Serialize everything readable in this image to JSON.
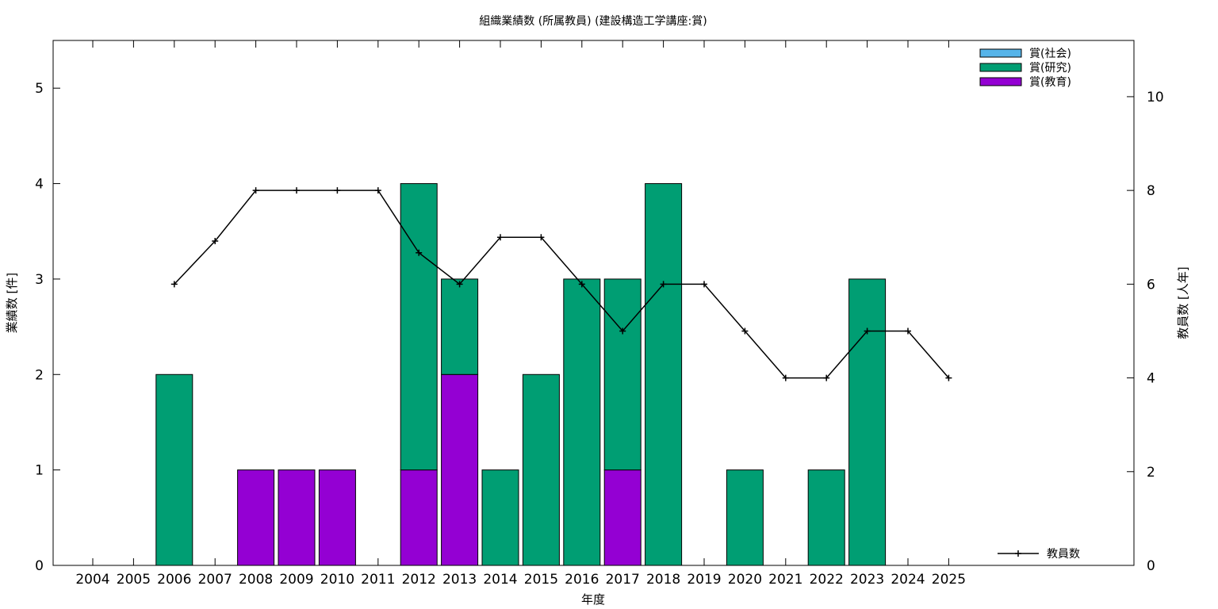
{
  "chart_data": {
    "type": "bar",
    "stacked": true,
    "title": "組織業績数 (所属教員) (建設構造工学講座:賞)",
    "xlabel": "年度",
    "ylabel": "業績数 [件]",
    "y2label": "教員数 [人年]",
    "ylim": [
      0,
      5.5
    ],
    "y2lim": [
      0,
      11.2
    ],
    "yticks": [
      0,
      1,
      2,
      3,
      4,
      5
    ],
    "y2ticks": [
      0,
      2,
      4,
      6,
      8,
      10
    ],
    "legend_position": "top-right",
    "categories": [
      "2004",
      "2005",
      "2006",
      "2007",
      "2008",
      "2009",
      "2010",
      "2011",
      "2012",
      "2013",
      "2014",
      "2015",
      "2016",
      "2017",
      "2018",
      "2019",
      "2020",
      "2021",
      "2022",
      "2023",
      "2024",
      "2025"
    ],
    "series": [
      {
        "name": "賞(教育)",
        "color": "#9400d3",
        "values": [
          0,
          0,
          0,
          0,
          1,
          1,
          1,
          0,
          1,
          2,
          0,
          0,
          0,
          1,
          0,
          0,
          0,
          0,
          0,
          0,
          0,
          0
        ]
      },
      {
        "name": "賞(研究)",
        "color": "#009e73",
        "values": [
          0,
          0,
          2,
          0,
          0,
          0,
          0,
          0,
          3,
          1,
          1,
          2,
          3,
          2,
          4,
          0,
          1,
          0,
          1,
          3,
          0,
          0
        ]
      },
      {
        "name": "賞(社会)",
        "color": "#56b4e9",
        "values": [
          0,
          0,
          0,
          0,
          0,
          0,
          0,
          0,
          0,
          0,
          0,
          0,
          0,
          0,
          0,
          0,
          0,
          0,
          0,
          0,
          0,
          0
        ]
      }
    ],
    "line_series": {
      "name": "教員数",
      "axis": "y2",
      "color": "#000000",
      "x": [
        "2006",
        "2007",
        "2008",
        "2009",
        "2010",
        "2011",
        "2012",
        "2013",
        "2014",
        "2015",
        "2016",
        "2017",
        "2018",
        "2019",
        "2020",
        "2021",
        "2022",
        "2023",
        "2024",
        "2025"
      ],
      "values": [
        6,
        6.92,
        8,
        8,
        8,
        8,
        6.67,
        6,
        7,
        7,
        6,
        5,
        6,
        6,
        5,
        4,
        4,
        5,
        5,
        4
      ]
    },
    "legend_order": [
      "賞(社会)",
      "賞(研究)",
      "賞(教育)"
    ]
  }
}
